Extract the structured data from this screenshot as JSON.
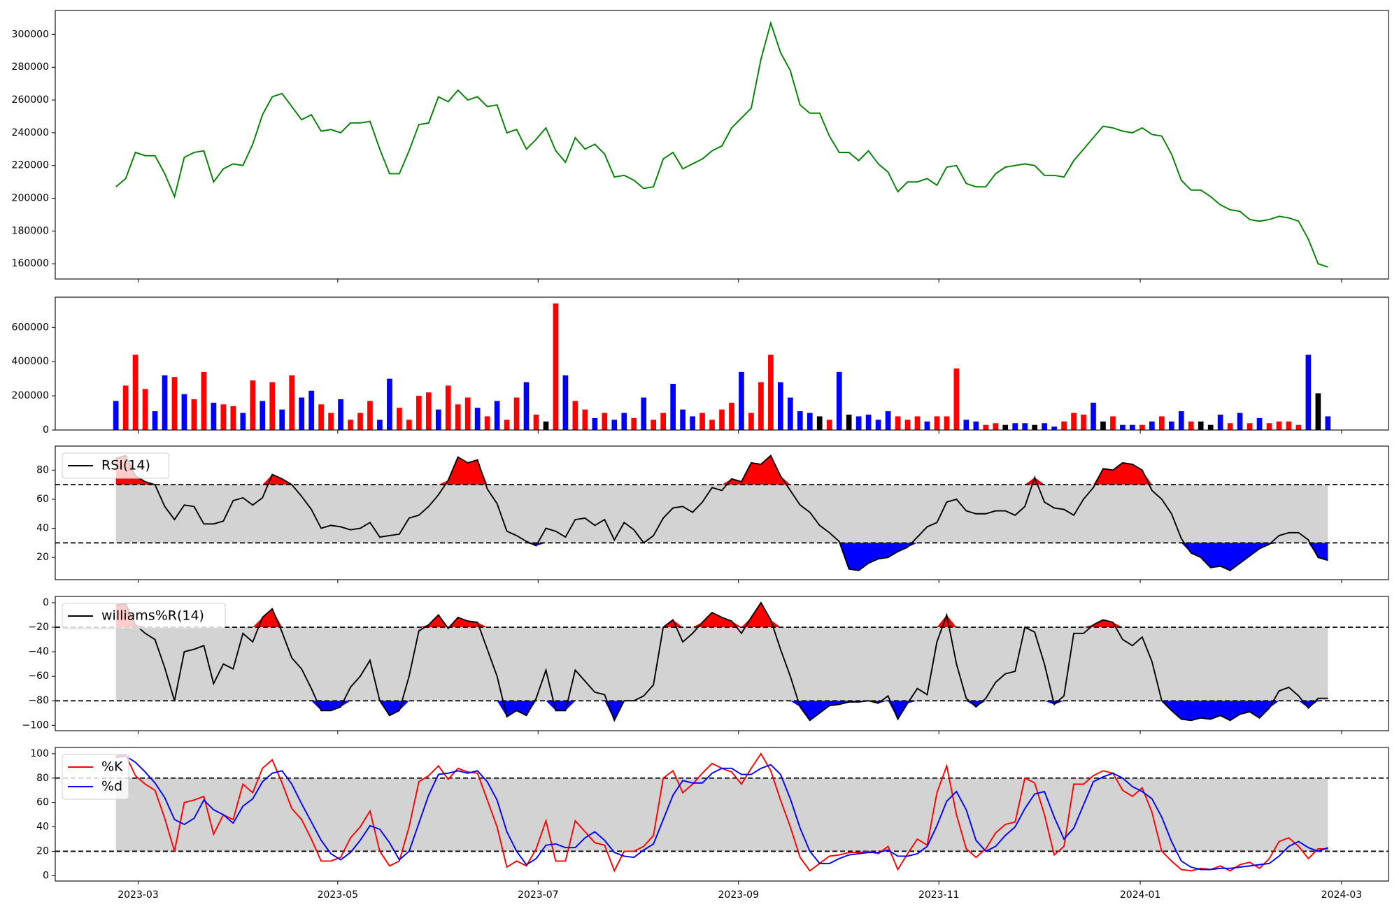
{
  "chart_data": {
    "type": "multi-panel",
    "xlim": [
      -6.2,
      130.2
    ],
    "xticks": [
      {
        "value": 2.28,
        "label": "2023-03"
      },
      {
        "value": 22.7,
        "label": "2023-05"
      },
      {
        "value": 43.2,
        "label": "2023-07"
      },
      {
        "value": 63.7,
        "label": "2023-09"
      },
      {
        "value": 84.2,
        "label": "2023-11"
      },
      {
        "value": 104.8,
        "label": "2024-01"
      },
      {
        "value": 125.4,
        "label": "2024-03"
      }
    ],
    "panels": [
      {
        "type": "line",
        "color": "green",
        "ylim": [
          150700,
          314700
        ],
        "yticks": [
          160000,
          180000,
          200000,
          220000,
          240000,
          260000,
          280000,
          300000
        ],
        "values": [
          207000,
          212000,
          228000,
          226000,
          226000,
          215000,
          201000,
          225000,
          228000,
          229000,
          210000,
          218000,
          221000,
          220000,
          233000,
          251000,
          262000,
          264000,
          256000,
          248000,
          251000,
          241000,
          242000,
          240000,
          246000,
          246000,
          247000,
          230000,
          215000,
          215000,
          229000,
          245000,
          246000,
          262000,
          259000,
          266000,
          260000,
          262000,
          256000,
          257000,
          240000,
          242000,
          230000,
          236000,
          243000,
          229000,
          222000,
          237000,
          230000,
          233000,
          227000,
          213000,
          214000,
          211000,
          206000,
          207000,
          224000,
          228000,
          218000,
          221000,
          224000,
          229000,
          232000,
          243000,
          249000,
          255000,
          285000,
          307000,
          289000,
          278000,
          257000,
          252000,
          252000,
          238000,
          228000,
          228000,
          223000,
          229000,
          221000,
          216000,
          204000,
          210000,
          210000,
          212000,
          208000,
          219000,
          220000,
          209000,
          207000,
          207000,
          215000,
          219000,
          220000,
          221000,
          220000,
          214000,
          214000,
          213000,
          223000,
          230000,
          237000,
          244000,
          243000,
          241000,
          240000,
          243000,
          239000,
          238000,
          227000,
          211000,
          205000,
          205000,
          201000,
          196000,
          193000,
          192000,
          187000,
          186000,
          187000,
          189000,
          188000,
          186000,
          175000,
          160000,
          158000
        ]
      },
      {
        "type": "bar",
        "ylim": [
          0,
          777000
        ],
        "yticks": [
          0,
          200000,
          400000,
          600000
        ],
        "values": [
          170000,
          260000,
          440000,
          240000,
          110000,
          320000,
          310000,
          210000,
          180000,
          340000,
          160000,
          150000,
          140000,
          100000,
          290000,
          170000,
          280000,
          120000,
          320000,
          190000,
          230000,
          150000,
          100000,
          180000,
          60000,
          100000,
          170000,
          60000,
          300000,
          130000,
          60000,
          200000,
          220000,
          120000,
          260000,
          150000,
          190000,
          130000,
          80000,
          170000,
          60000,
          190000,
          280000,
          90000,
          50000,
          740000,
          320000,
          170000,
          120000,
          70000,
          100000,
          60000,
          100000,
          70000,
          190000,
          60000,
          100000,
          270000,
          120000,
          80000,
          100000,
          60000,
          120000,
          160000,
          340000,
          100000,
          280000,
          440000,
          280000,
          190000,
          110000,
          100000,
          80000,
          60000,
          340000,
          90000,
          80000,
          90000,
          60000,
          110000,
          80000,
          60000,
          80000,
          50000,
          80000,
          80000,
          360000,
          60000,
          50000,
          30000,
          40000,
          30000,
          40000,
          40000,
          30000,
          40000,
          20000,
          50000,
          100000,
          90000,
          160000,
          50000,
          80000,
          30000,
          30000,
          30000,
          50000,
          80000,
          50000,
          110000,
          50000,
          50000,
          30000,
          90000,
          40000,
          100000,
          40000,
          70000,
          40000,
          50000,
          50000,
          30000,
          440000,
          215000,
          80000
        ],
        "colors": [
          "blue",
          "red",
          "red",
          "red",
          "blue",
          "blue",
          "red",
          "blue",
          "red",
          "red",
          "blue",
          "red",
          "red",
          "blue",
          "red",
          "blue",
          "red",
          "blue",
          "red",
          "blue",
          "blue",
          "red",
          "red",
          "blue",
          "red",
          "red",
          "red",
          "blue",
          "blue",
          "red",
          "red",
          "red",
          "red",
          "blue",
          "red",
          "red",
          "red",
          "blue",
          "red",
          "blue",
          "red",
          "red",
          "blue",
          "red",
          "black",
          "red",
          "blue",
          "red",
          "red",
          "blue",
          "red",
          "blue",
          "blue",
          "red",
          "blue",
          "red",
          "red",
          "blue",
          "blue",
          "blue",
          "red",
          "red",
          "red",
          "red",
          "blue",
          "red",
          "red",
          "red",
          "blue",
          "blue",
          "blue",
          "blue",
          "black",
          "red",
          "blue",
          "black",
          "blue",
          "blue",
          "blue",
          "blue",
          "red",
          "red",
          "red",
          "blue",
          "red",
          "red",
          "red",
          "blue",
          "blue",
          "red",
          "red",
          "black",
          "blue",
          "blue",
          "black",
          "blue",
          "blue",
          "red",
          "red",
          "red",
          "blue",
          "black",
          "red",
          "blue",
          "blue",
          "red",
          "blue",
          "red",
          "blue",
          "blue",
          "red",
          "black",
          "black",
          "blue",
          "red",
          "blue",
          "red",
          "blue",
          "red",
          "red",
          "red",
          "red",
          "blue",
          "black",
          "blue"
        ]
      },
      {
        "type": "oscillator",
        "legend": "upper left",
        "ylim": [
          4.7,
          96.5
        ],
        "yticks": [
          20,
          40,
          60,
          80
        ],
        "upper": 70,
        "lower": 30,
        "band_color": "lightgray",
        "fill_upper": "red",
        "fill_lower": "blue",
        "series": [
          {
            "name": "RSI(14)",
            "color": "black",
            "values": [
              88,
              90,
              76,
              72,
              70,
              55,
              46,
              56,
              55,
              43,
              43,
              45,
              59,
              61,
              56,
              61,
              77,
              74,
              70,
              62,
              53,
              40,
              42,
              41,
              39,
              40,
              44,
              34,
              35,
              36,
              47,
              49,
              55,
              63,
              73,
              89,
              85,
              87,
              67,
              57,
              38,
              35,
              31,
              28,
              40,
              38,
              34,
              46,
              47,
              42,
              46,
              32,
              44,
              39,
              30,
              35,
              47,
              54,
              55,
              51,
              58,
              68,
              66,
              74,
              72,
              85,
              84,
              90,
              76,
              66,
              56,
              51,
              42,
              37,
              31,
              12,
              11,
              16,
              19,
              20,
              24,
              27,
              34,
              41,
              44,
              58,
              60,
              52,
              50,
              50,
              52,
              52,
              49,
              55,
              75,
              58,
              54,
              53,
              49,
              60,
              68,
              81,
              80,
              85,
              84,
              80,
              66,
              60,
              50,
              33,
              23,
              20,
              13,
              14,
              11,
              16,
              21,
              26,
              29,
              35,
              37,
              37,
              32,
              20,
              18
            ]
          }
        ]
      },
      {
        "type": "oscillator",
        "legend": "upper left",
        "ylim": [
          -104.4,
          5.1
        ],
        "yticks": [
          {
            "value": -100,
            "label": "−100"
          },
          {
            "value": -80,
            "label": "−80"
          },
          {
            "value": -60,
            "label": "−60"
          },
          {
            "value": -40,
            "label": "−40"
          },
          {
            "value": -20,
            "label": "−20"
          },
          0
        ],
        "upper": -20,
        "lower": -80,
        "band_color": "lightgray",
        "fill_upper": "red",
        "fill_lower": "blue",
        "series": [
          {
            "name": "williams%R(14)",
            "color": "black",
            "values": [
              -2,
              -1,
              -18,
              -25,
              -30,
              -53,
              -80,
              -40,
              -38,
              -35,
              -66,
              -50,
              -54,
              -25,
              -32,
              -12,
              -5,
              -24,
              -45,
              -54,
              -70,
              -88,
              -88,
              -85,
              -69,
              -60,
              -47,
              -80,
              -92,
              -88,
              -60,
              -23,
              -18,
              -10,
              -21,
              -12,
              -15,
              -16,
              -38,
              -60,
              -93,
              -88,
              -92,
              -78,
              -55,
              -88,
              -88,
              -55,
              -64,
              -73,
              -75,
              -96,
              -80,
              -80,
              -76,
              -67,
              -20,
              -14,
              -32,
              -25,
              -16,
              -8,
              -12,
              -15,
              -25,
              -12,
              0,
              -14,
              -38,
              -60,
              -85,
              -96,
              -90,
              -84,
              -83,
              -81,
              -81,
              -80,
              -82,
              -76,
              -95,
              -82,
              -70,
              -75,
              -32,
              -10,
              -50,
              -78,
              -85,
              -78,
              -65,
              -58,
              -56,
              -20,
              -24,
              -50,
              -83,
              -76,
              -25,
              -25,
              -18,
              -14,
              -16,
              -30,
              -35,
              -28,
              -48,
              -80,
              -88,
              -95,
              -96,
              -94,
              -95,
              -92,
              -96,
              -91,
              -89,
              -94,
              -86,
              -72,
              -69,
              -76,
              -86,
              -78,
              -78
            ]
          }
        ]
      },
      {
        "type": "oscillator",
        "legend": "upper left",
        "ylim": [
          -4.4,
          105.1
        ],
        "yticks": [
          0,
          20,
          40,
          60,
          80,
          100
        ],
        "upper": 80,
        "lower": 20,
        "band_color": "lightgray",
        "series": [
          {
            "name": "%K",
            "color": "red",
            "values": [
              98,
              99,
              82,
              75,
              70,
              47,
              20,
              60,
              62,
              65,
              34,
              50,
              46,
              75,
              68,
              88,
              95,
              76,
              55,
              46,
              30,
              12,
              12,
              15,
              31,
              40,
              53,
              20,
              8,
              12,
              40,
              77,
              82,
              90,
              79,
              88,
              85,
              84,
              62,
              40,
              7,
              12,
              8,
              22,
              45,
              12,
              12,
              45,
              36,
              27,
              25,
              4,
              20,
              20,
              24,
              33,
              80,
              86,
              68,
              75,
              84,
              92,
              88,
              85,
              75,
              88,
              100,
              86,
              62,
              40,
              15,
              4,
              10,
              16,
              17,
              19,
              19,
              20,
              18,
              24,
              5,
              18,
              30,
              25,
              68,
              90,
              50,
              22,
              15,
              22,
              35,
              42,
              44,
              80,
              76,
              50,
              17,
              24,
              75,
              75,
              82,
              86,
              84,
              70,
              65,
              72,
              52,
              20,
              12,
              5,
              4,
              6,
              5,
              8,
              4,
              9,
              11,
              6,
              14,
              28,
              31,
              24,
              14,
              22,
              22
            ]
          },
          {
            "name": "%d",
            "color": "blue",
            "values": [
              97,
              98,
              93,
              85,
              76,
              64,
              46,
              42,
              47,
              62,
              54,
              50,
              43,
              57,
              63,
              77,
              84,
              86,
              75,
              59,
              44,
              29,
              18,
              13,
              19,
              29,
              41,
              38,
              27,
              13,
              20,
              43,
              66,
              83,
              84,
              86,
              84,
              86,
              77,
              62,
              36,
              20,
              9,
              14,
              25,
              26,
              23,
              23,
              31,
              36,
              29,
              19,
              16,
              15,
              21,
              26,
              46,
              66,
              78,
              76,
              76,
              84,
              88,
              88,
              83,
              83,
              88,
              91,
              83,
              63,
              39,
              20,
              10,
              10,
              14,
              17,
              18,
              19,
              19,
              21,
              16,
              16,
              18,
              24,
              41,
              61,
              69,
              54,
              29,
              20,
              24,
              33,
              40,
              55,
              67,
              69,
              48,
              30,
              39,
              58,
              77,
              81,
              84,
              80,
              73,
              69,
              63,
              48,
              28,
              12,
              7,
              5,
              5,
              6,
              6,
              7,
              8,
              9,
              10,
              16,
              24,
              28,
              23,
              20,
              23
            ]
          }
        ]
      }
    ]
  }
}
